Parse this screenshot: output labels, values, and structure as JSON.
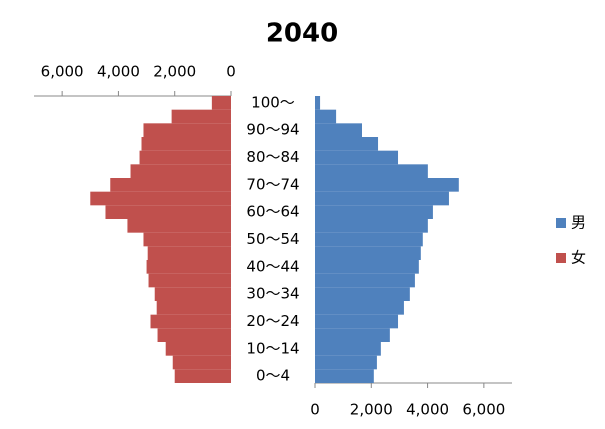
{
  "chart_data": {
    "type": "pyramid",
    "title": "2040",
    "categories": [
      "0～4",
      null,
      "10～14",
      null,
      "20～24",
      null,
      "30～34",
      null,
      "40～44",
      null,
      "50～54",
      null,
      "60～64",
      null,
      "70～74",
      null,
      "80～84",
      null,
      "90～94",
      null,
      "100～"
    ],
    "series": [
      {
        "name": "男",
        "color": "#4f81bd",
        "axis": "x",
        "values": [
          2090,
          2200,
          2340,
          2660,
          2950,
          3160,
          3370,
          3550,
          3690,
          3760,
          3830,
          4010,
          4190,
          4760,
          5110,
          4010,
          2950,
          2240,
          1670,
          750,
          180
        ]
      },
      {
        "name": "女",
        "color": "#c0504d",
        "axis": "x2",
        "values": [
          2000,
          2070,
          2320,
          2610,
          2860,
          2640,
          2710,
          2930,
          3000,
          2960,
          3110,
          3680,
          4460,
          5000,
          4290,
          3570,
          3250,
          3180,
          3110,
          2110,
          680
        ]
      }
    ],
    "xlim": [
      0,
      7000
    ],
    "xticks": [
      0,
      {
        "value": 2000,
        "label": "2,000"
      },
      {
        "value": 4000,
        "label": "4,000"
      },
      {
        "value": 6000,
        "label": "6,000"
      }
    ],
    "x2lim": [
      0,
      7000
    ],
    "x2ticks": [
      {
        "value": 6000,
        "label": "6,000"
      },
      {
        "value": 4000,
        "label": "4,000"
      },
      {
        "value": 2000,
        "label": "2,000"
      },
      0
    ],
    "legend": "right"
  }
}
